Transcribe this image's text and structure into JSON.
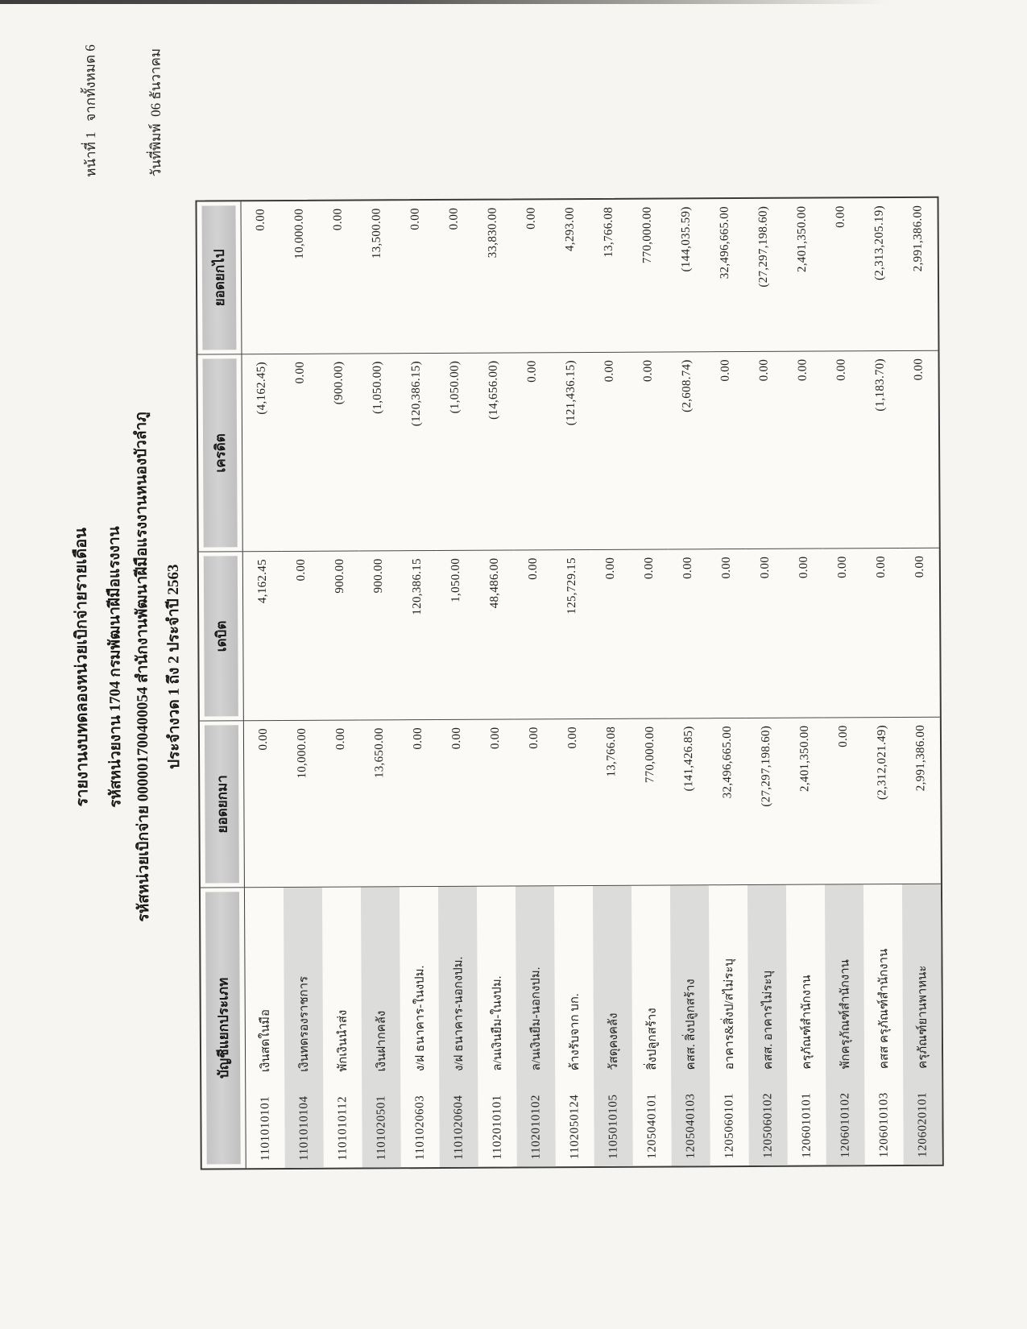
{
  "page_info": {
    "line1": "หน้าที่ 1   จากทั้งหมด 6",
    "line2": "วันที่พิมพ์  06 ธันวาคม"
  },
  "title": {
    "line1": "รายงานงบทดลองหน่วยเบิกจ่ายรายเดือน",
    "line2": "รหัสหน่วยงาน 1704 กรมพัฒนาฝีมือแรงงาน",
    "line3": "รหัสหน่วยเบิกจ่าย 000001700400054 สำนักงานพัฒนาฝีมือแรงงานหนองบัวลำภู",
    "line4": "ประจำงวด 1 ถึง 2 ประจำปี 2563"
  },
  "table": {
    "headers": [
      "บัญชีแยกประเภท",
      "ยอดยกมา",
      "เดบิต",
      "เครดิต",
      "ยอดยกไป"
    ],
    "rows": [
      {
        "code": "1101010101",
        "name": "เงินสดในมือ",
        "carry_forward": "0.00",
        "debit": "4,162.45",
        "credit": "(4,162.45)",
        "balance": "0.00"
      },
      {
        "code": "1101010104",
        "name": "เงินทดรองราชการ",
        "carry_forward": "10,000.00",
        "debit": "0.00",
        "credit": "0.00",
        "balance": "10,000.00"
      },
      {
        "code": "1101010112",
        "name": "พักเงินนำส่ง",
        "carry_forward": "0.00",
        "debit": "900.00",
        "credit": "(900.00)",
        "balance": "0.00"
      },
      {
        "code": "1101020501",
        "name": "เงินฝากคลัง",
        "carry_forward": "13,650.00",
        "debit": "900.00",
        "credit": "(1,050.00)",
        "balance": "13,500.00"
      },
      {
        "code": "1101020603",
        "name": "ง/ฝ ธนาคาร-ในงปม.",
        "carry_forward": "0.00",
        "debit": "120,386.15",
        "credit": "(120,386.15)",
        "balance": "0.00"
      },
      {
        "code": "1101020604",
        "name": "ง/ฝ ธนาคาร-นอกงปม.",
        "carry_forward": "0.00",
        "debit": "1,050.00",
        "credit": "(1,050.00)",
        "balance": "0.00"
      },
      {
        "code": "1102010101",
        "name": "ล/นเงินยืม-ในงปม.",
        "carry_forward": "0.00",
        "debit": "48,486.00",
        "credit": "(14,656.00)",
        "balance": "33,830.00"
      },
      {
        "code": "1102010102",
        "name": "ล/นเงินยืม-นอกงปม.",
        "carry_forward": "0.00",
        "debit": "0.00",
        "credit": "0.00",
        "balance": "0.00"
      },
      {
        "code": "1102050124",
        "name": "ค้างรับจาก บก.",
        "carry_forward": "0.00",
        "debit": "125,729.15",
        "credit": "(121,436.15)",
        "balance": "4,293.00"
      },
      {
        "code": "1105010105",
        "name": "วัสดุคงคลัง",
        "carry_forward": "13,766.08",
        "debit": "0.00",
        "credit": "0.00",
        "balance": "13,766.08"
      },
      {
        "code": "1205040101",
        "name": "สิ่งปลูกสร้าง",
        "carry_forward": "770,000.00",
        "debit": "0.00",
        "credit": "0.00",
        "balance": "770,000.00"
      },
      {
        "code": "1205040103",
        "name": "คสส. สิ่งปลูกสร้าง",
        "carry_forward": "(141,426.85)",
        "debit": "0.00",
        "credit": "(2,608.74)",
        "balance": "(144,035.59)"
      },
      {
        "code": "1205060101",
        "name": "อาคาร&สิ่งป/สไม่ระบุ",
        "carry_forward": "32,496,665.00",
        "debit": "0.00",
        "credit": "0.00",
        "balance": "32,496,665.00"
      },
      {
        "code": "1205060102",
        "name": "คสส. อาคารไม่ระบุ",
        "carry_forward": "(27,297,198.60)",
        "debit": "0.00",
        "credit": "0.00",
        "balance": "(27,297,198.60)"
      },
      {
        "code": "1206010101",
        "name": "ครุภัณฑ์สำนักงาน",
        "carry_forward": "2,401,350.00",
        "debit": "0.00",
        "credit": "0.00",
        "balance": "2,401,350.00"
      },
      {
        "code": "1206010102",
        "name": "พักครุภัณฑ์สำนักงาน",
        "carry_forward": "0.00",
        "debit": "0.00",
        "credit": "0.00",
        "balance": "0.00"
      },
      {
        "code": "1206010103",
        "name": "คสส ครุภัณฑ์สำนักงาน",
        "carry_forward": "(2,312,021.49)",
        "debit": "0.00",
        "credit": "(1,183.70)",
        "balance": "(2,313,205.19)"
      },
      {
        "code": "1206020101",
        "name": "ครุภัณฑ์ยานพาหนะ",
        "carry_forward": "2,991,386.00",
        "debit": "0.00",
        "credit": "0.00",
        "balance": "2,991,386.00"
      }
    ]
  },
  "colors": {
    "paper": "#f7f5f1",
    "ink": "#1f1f1f",
    "header_fill": "#c8c8c8",
    "stripe_fill": "#dcdcda",
    "border": "#3b3b3b"
  }
}
